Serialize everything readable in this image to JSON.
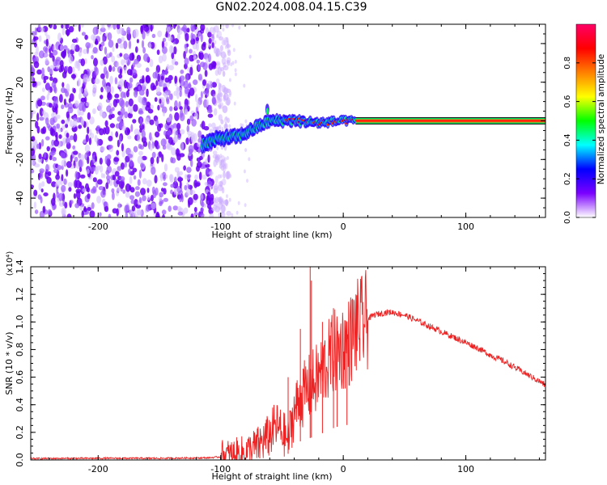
{
  "title": "GN02.2024.008.04.15.C39",
  "chart_data": [
    {
      "type": "heatmap",
      "xlabel": "Height of straight line (km)",
      "ylabel": "Frequency (Hz)",
      "xlim": [
        -255,
        165
      ],
      "ylim": [
        -50,
        50
      ],
      "x_ticks": [
        -200,
        -100,
        0,
        100
      ],
      "x_tick_labels": [
        "-200",
        "-100",
        "0",
        "100"
      ],
      "y_ticks": [
        -40,
        -20,
        0,
        20,
        40
      ],
      "y_tick_labels": [
        "-40",
        "-20",
        "0",
        "20",
        "40"
      ],
      "noise_region_x": [
        -255,
        -105
      ],
      "signal_track": [
        {
          "x": -115,
          "y": -12
        },
        {
          "x": -100,
          "y": -9
        },
        {
          "x": -85,
          "y": -8
        },
        {
          "x": -70,
          "y": -3
        },
        {
          "x": -60,
          "y": 0
        },
        {
          "x": -40,
          "y": 0
        },
        {
          "x": -20,
          "y": -1
        },
        {
          "x": 0,
          "y": 0
        },
        {
          "x": 165,
          "y": 0
        }
      ],
      "steady_line_x": [
        10,
        165
      ],
      "steady_line_y": 0,
      "grid": false
    },
    {
      "type": "colorbar",
      "label": "Normalized spectral amplitude",
      "range": [
        0,
        1
      ],
      "ticks": [
        0.0,
        0.2,
        0.4,
        0.6,
        0.8
      ],
      "tick_labels": [
        "0.0",
        "0.2",
        "0.4",
        "0.6",
        "0.8"
      ],
      "colors": [
        "#ffffff",
        "#7b00ff",
        "#0000ff",
        "#00ffff",
        "#00ff00",
        "#ffff00",
        "#ff8000",
        "#ff0000",
        "#ff0066"
      ]
    },
    {
      "type": "line",
      "xlabel": "Height of straight line (km)",
      "ylabel": "SNR (10 * v/v)",
      "y_multiplier": "(x10⁴)",
      "xlim": [
        -255,
        165
      ],
      "ylim": [
        0,
        1.4
      ],
      "x_ticks": [
        -200,
        -100,
        0,
        100
      ],
      "x_tick_labels": [
        "-200",
        "-100",
        "0",
        "100"
      ],
      "y_ticks": [
        0.0,
        0.2,
        0.4,
        0.6,
        0.8,
        1.0,
        1.2,
        1.4
      ],
      "y_tick_labels": [
        "0.0",
        "0.2",
        "0.4",
        "0.6",
        "0.8",
        "1.0",
        "1.2",
        "1.4"
      ],
      "series": [
        {
          "color": "#ee2222",
          "x": [
            -255,
            -200,
            -150,
            -110,
            -90,
            -80,
            -70,
            -60,
            -55,
            -50,
            -45,
            -40,
            -35,
            -30,
            -25,
            -20,
            -15,
            -10,
            -5,
            0,
            5,
            10,
            15,
            20,
            25,
            30,
            35,
            40,
            45,
            50,
            60,
            70,
            80,
            90,
            100,
            110,
            120,
            130,
            140,
            150,
            160,
            165
          ],
          "y": [
            0.01,
            0.012,
            0.012,
            0.015,
            0.03,
            0.05,
            0.1,
            0.18,
            0.25,
            0.2,
            0.15,
            0.35,
            0.45,
            0.5,
            0.55,
            0.6,
            0.68,
            0.75,
            0.8,
            0.82,
            0.86,
            0.95,
            0.98,
            1.02,
            1.05,
            1.06,
            1.07,
            1.07,
            1.06,
            1.05,
            1.01,
            0.97,
            0.93,
            0.89,
            0.85,
            0.81,
            0.76,
            0.72,
            0.67,
            0.62,
            0.57,
            0.54
          ]
        }
      ],
      "spikes": [
        {
          "x": -27,
          "y": 1.4
        },
        {
          "x": -26,
          "y": 1.3
        },
        {
          "x": -35,
          "y": 0.95
        },
        {
          "x": -45,
          "y": 0.6
        },
        {
          "x": -17,
          "y": 1.0
        },
        {
          "x": -8,
          "y": 1.1
        },
        {
          "x": -5,
          "y": 1.0
        },
        {
          "x": 3,
          "y": 1.0
        }
      ],
      "grid": false
    }
  ]
}
